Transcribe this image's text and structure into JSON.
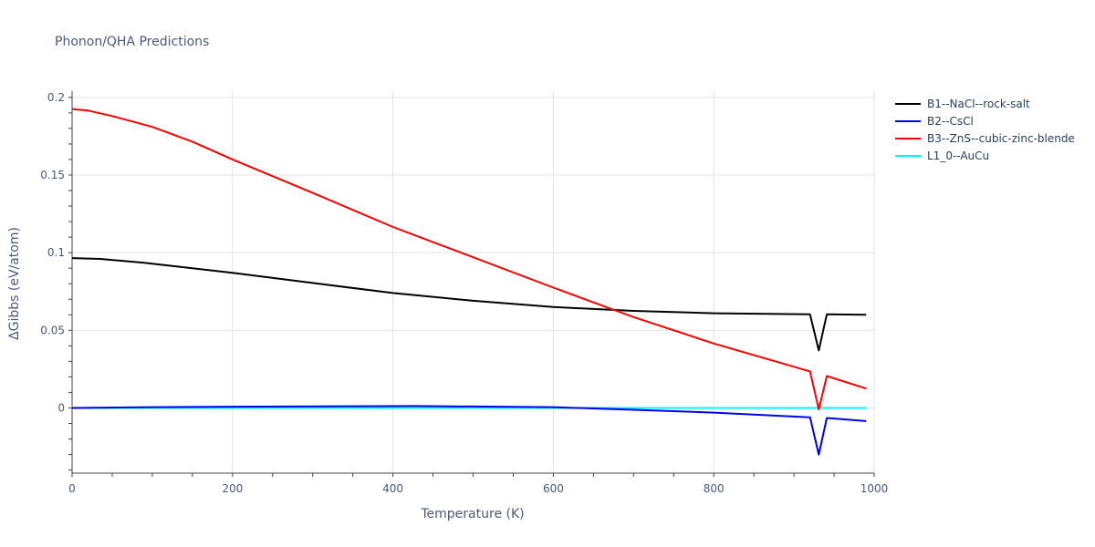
{
  "chart_data": {
    "type": "line",
    "title": "Phonon/QHA Predictions",
    "xlabel": "Temperature (K)",
    "ylabel": "ΔGibbs (eV/atom)",
    "xlim": [
      0,
      1000
    ],
    "ylim": [
      -0.042,
      0.204
    ],
    "x_ticks": [
      0,
      200,
      400,
      600,
      800,
      1000
    ],
    "x_tick_labels": [
      "0",
      "200",
      "400",
      "600",
      "800",
      "1000"
    ],
    "y_ticks": [
      0,
      0.05,
      0.1,
      0.15,
      0.2
    ],
    "y_tick_labels": [
      "0",
      "0.05",
      "0.1",
      "0.15",
      "0.2"
    ],
    "grid": true,
    "legend_position": "top-right",
    "series": [
      {
        "name": "B1--NaCl--rock-salt",
        "color": "#000000",
        "x": [
          0,
          35,
          90,
          200,
          300,
          400,
          500,
          600,
          700,
          800,
          920,
          931,
          941,
          990
        ],
        "y": [
          0.0965,
          0.096,
          0.0935,
          0.087,
          0.0805,
          0.074,
          0.069,
          0.065,
          0.0625,
          0.061,
          0.0603,
          0.037,
          0.0603,
          0.06
        ]
      },
      {
        "name": "B2--CsCl",
        "color": "#0000ee",
        "x": [
          0,
          100,
          200,
          300,
          430,
          600,
          700,
          800,
          920,
          931,
          941,
          990
        ],
        "y": [
          0.0,
          0.0005,
          0.0008,
          0.001,
          0.0012,
          0.0005,
          -0.0012,
          -0.003,
          -0.006,
          -0.03,
          -0.0065,
          -0.0085
        ]
      },
      {
        "name": "B3--ZnS--cubic-zinc-blende",
        "color": "#ff0000",
        "x": [
          0,
          20,
          50,
          100,
          150,
          200,
          300,
          400,
          500,
          600,
          700,
          800,
          920,
          931,
          941,
          990
        ],
        "y": [
          0.1925,
          0.1915,
          0.188,
          0.181,
          0.1715,
          0.16,
          0.1385,
          0.1165,
          0.097,
          0.0775,
          0.0585,
          0.0415,
          0.0235,
          -0.001,
          0.0205,
          0.0125
        ]
      },
      {
        "name": "L1_0--AuCu",
        "color": "#00f5f5",
        "x": [
          0,
          990
        ],
        "y": [
          0.0,
          0.0
        ]
      }
    ]
  }
}
